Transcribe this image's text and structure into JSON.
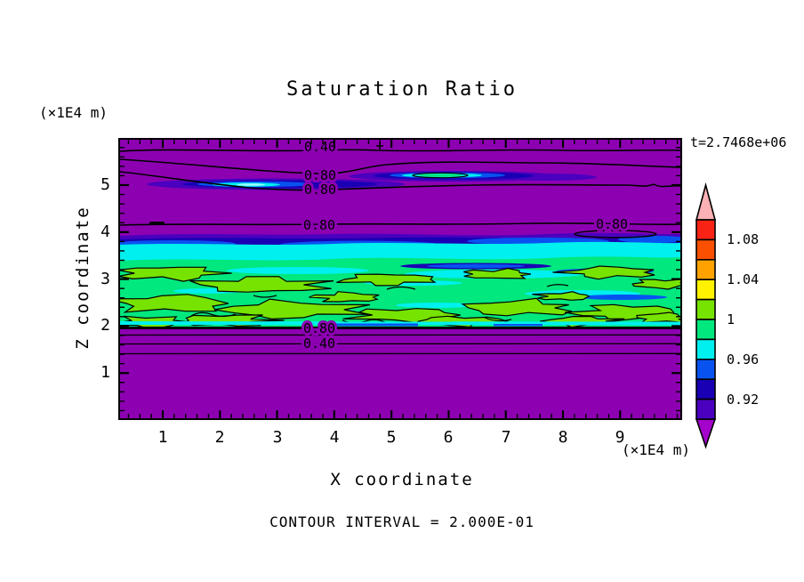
{
  "title": "Saturation Ratio",
  "time_label": "t=2.7468e+06",
  "footer": {
    "contour_interval_label": "CONTOUR INTERVAL = 2.000E-01"
  },
  "axes": {
    "x": {
      "label": "X coordinate",
      "unit": "(×1E4 m)",
      "ticks": [
        "1",
        "2",
        "3",
        "4",
        "5",
        "6",
        "7",
        "8",
        "9"
      ]
    },
    "z": {
      "label": "Z coordinate",
      "unit": "(×1E4 m)",
      "ticks": [
        "5",
        "4",
        "3",
        "2",
        "1"
      ]
    }
  },
  "colorbar": {
    "labels": [
      {
        "text": "1.08"
      },
      {
        "text": "1.04"
      },
      {
        "text": "1"
      },
      {
        "text": "0.96"
      },
      {
        "text": "0.92"
      }
    ],
    "over": {
      "range": ">1.10",
      "color": "#FBB1B5"
    },
    "under": {
      "range": "<0.90",
      "color": "#A303CB"
    },
    "segments": [
      {
        "range": "1.08-1.10",
        "color": "#F82314"
      },
      {
        "range": "1.06-1.08",
        "color": "#FB5000"
      },
      {
        "range": "1.04-1.06",
        "color": "#FFA200"
      },
      {
        "range": "1.02-1.04",
        "color": "#FFF200"
      },
      {
        "range": "1.00-1.02",
        "color": "#77E300"
      },
      {
        "range": "0.98-1.00",
        "color": "#00E87E"
      },
      {
        "range": "0.96-0.98",
        "color": "#00EFEF"
      },
      {
        "range": "0.94-0.96",
        "color": "#0853F0"
      },
      {
        "range": "0.92-0.94",
        "color": "#1A00B4"
      },
      {
        "range": "0.90-0.92",
        "color": "#4A00BE"
      }
    ]
  },
  "map": {
    "background_color": "#8D00B2",
    "contour_labels": [
      {
        "text": "0.40"
      },
      {
        "text": "0.80"
      },
      {
        "text": "0.80"
      },
      {
        "text": "0.80"
      },
      {
        "text": "0.80"
      },
      {
        "text": "0.80"
      },
      {
        "text": "0.40"
      }
    ]
  },
  "chart_data": {
    "type": "heatmap",
    "title": "Saturation Ratio",
    "xlabel": "X coordinate (×1E4 m)",
    "ylabel": "Z coordinate (×1E4 m)",
    "xlim": [
      0,
      10
    ],
    "ylim": [
      0,
      6
    ],
    "x_major_ticks": [
      1,
      2,
      3,
      4,
      5,
      6,
      7,
      8,
      9
    ],
    "z_major_ticks": [
      1,
      2,
      3,
      4,
      5
    ],
    "minor_tick_step": 0.2,
    "time": "t=2.7468e+06",
    "contour_interval": 0.2,
    "contour_line_labels": [
      0.4,
      0.8
    ],
    "fill_levels": [
      0.9,
      0.92,
      0.94,
      0.96,
      0.98,
      1.0,
      1.02,
      1.04,
      1.06,
      1.08,
      1.1
    ],
    "fill_colors": [
      "#A303CB",
      "#4A00BE",
      "#1A00B4",
      "#0853F0",
      "#00EFEF",
      "#00E87E",
      "#77E300",
      "#FFF200",
      "#FFA200",
      "#FB5000",
      "#F82314",
      "#FBB1B5"
    ],
    "features": [
      "Uniform sub-saturated background (<0.4, purple) above z≈4.2 and below z≈1.9",
      "Thin moist lens near z≈5 spanning x≈0.8–8.3 with blue/cyan core reaching ≈1.0 (closed 1.0 contour around brightest core)",
      "Pair of 0.80 contour lines bracketing the z≈5 lens; labels stacked near x≈3.5",
      "Single 0.80 contour near z≈4.15 across full width (labels near x≈3.4 and x≈8.7); small closed contours at x≈0.7 and x≈8.8",
      "Saturated cloud band z≈2.0–3.6: values 0.94–1.02 (cyan/spring green) with dark blue streaks at its top and many turbulent yellow-green pockets >1.0 outlined by the 1.0 contour",
      "Stacked horizontal contours 0.80/0.60/0.40/0.20 immediately below the band (z≈1.6–2.0), labels 0.80 and 0.40 near x≈3.4"
    ]
  }
}
